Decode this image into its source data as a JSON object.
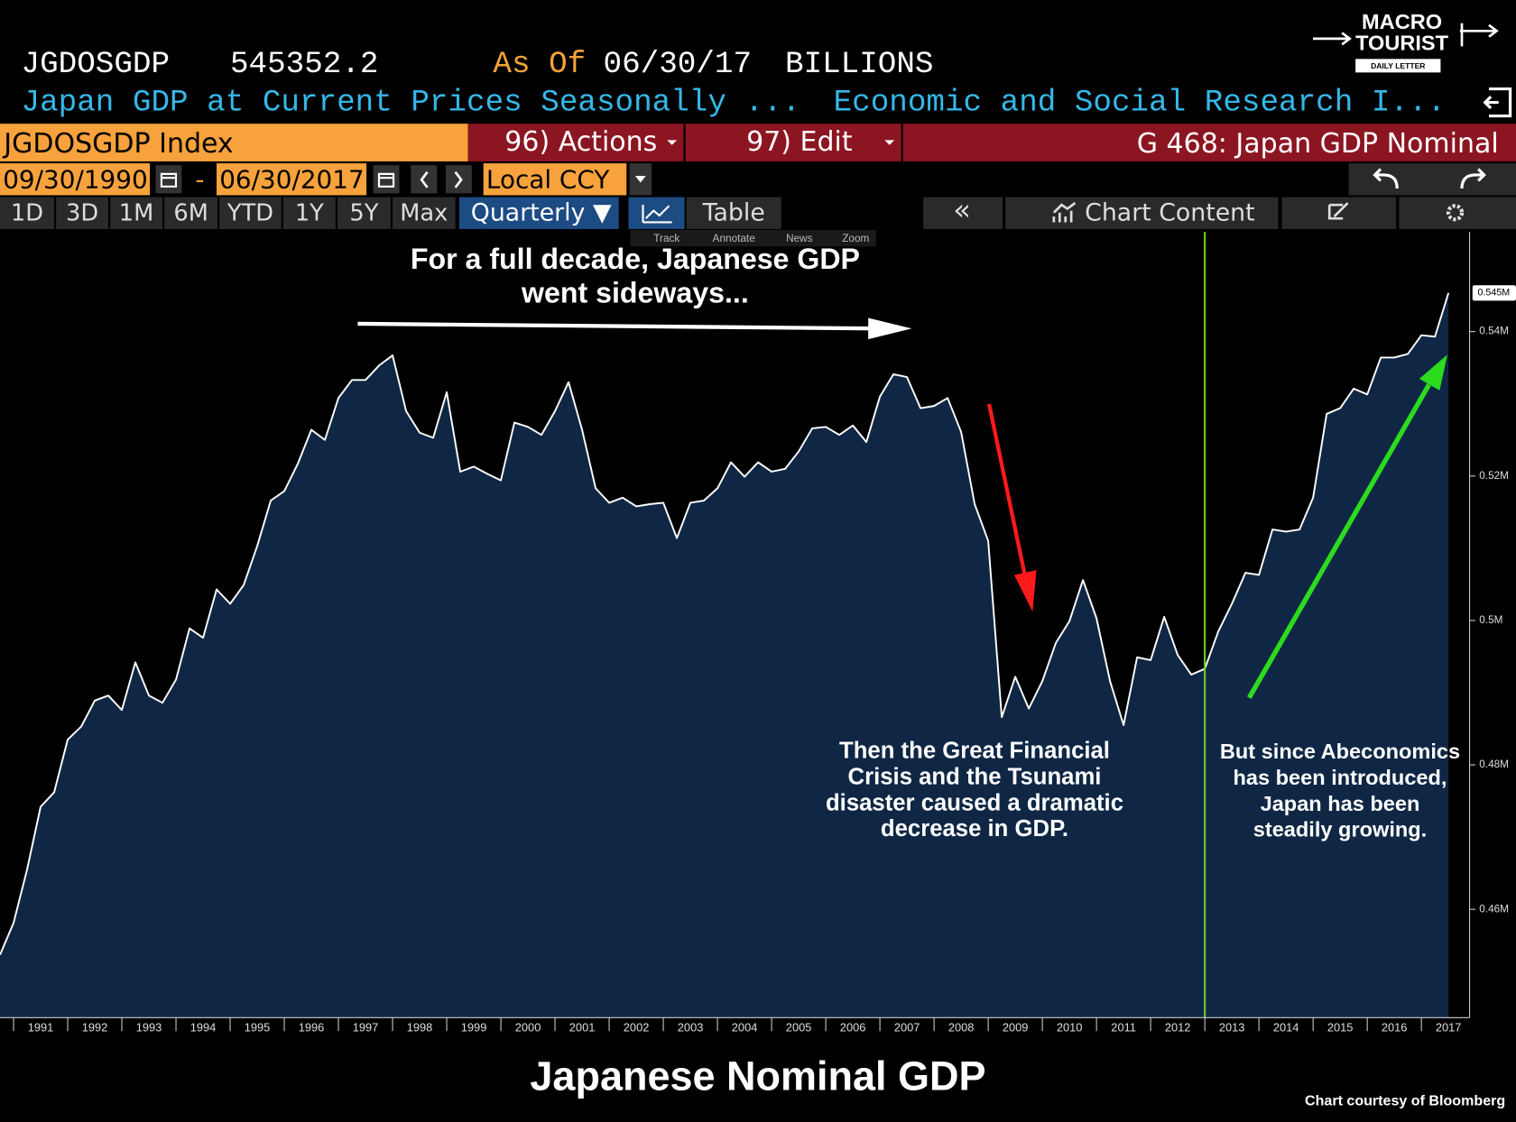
{
  "header": {
    "ticker": "JGDOSGDP",
    "last_price": "545352.2",
    "as_of_label": "As Of",
    "as_of_date": "06/30/17",
    "units": "BILLIONS",
    "description": "Japan GDP at Current Prices Seasonally ...",
    "source": "Economic and Social Research I..."
  },
  "logo": {
    "line1": "MACRO",
    "line2": "TOURIST",
    "line3": "DAILY LETTER"
  },
  "toolbar": {
    "security": "JGDOSGDP Index",
    "actions": "96) Actions",
    "edit": "97) Edit",
    "chart_name": "G 468: Japan GDP Nominal",
    "start_date": "09/30/1990",
    "date_separator": "-",
    "end_date": "06/30/2017",
    "currency": "Local CCY",
    "periods": [
      "1D",
      "3D",
      "1M",
      "6M",
      "YTD",
      "1Y",
      "5Y",
      "Max"
    ],
    "frequency": "Quarterly ▼",
    "table": "Table",
    "collapse": "«",
    "chart_content": "Chart Content",
    "tools": [
      "Track",
      "Annotate",
      "News",
      "Zoom"
    ]
  },
  "chart_data": {
    "type": "area",
    "title": "Japanese Nominal GDP",
    "source_note": "Chart courtesy of Bloomberg",
    "x": [
      1990.75,
      1991,
      1991.25,
      1991.5,
      1991.75,
      1992,
      1992.25,
      1992.5,
      1992.75,
      1993,
      1993.25,
      1993.5,
      1993.75,
      1994,
      1994.25,
      1994.5,
      1994.75,
      1995,
      1995.25,
      1995.5,
      1995.75,
      1996,
      1996.25,
      1996.5,
      1996.75,
      1997,
      1997.25,
      1997.5,
      1997.75,
      1998,
      1998.25,
      1998.5,
      1998.75,
      1999,
      1999.25,
      1999.5,
      1999.75,
      2000,
      2000.25,
      2000.5,
      2000.75,
      2001,
      2001.25,
      2001.5,
      2001.75,
      2002,
      2002.25,
      2002.5,
      2002.75,
      2003,
      2003.25,
      2003.5,
      2003.75,
      2004,
      2004.25,
      2004.5,
      2004.75,
      2005,
      2005.25,
      2005.5,
      2005.75,
      2006,
      2006.25,
      2006.5,
      2006.75,
      2007,
      2007.25,
      2007.5,
      2007.75,
      2008,
      2008.25,
      2008.5,
      2008.75,
      2009,
      2009.25,
      2009.5,
      2009.75,
      2010,
      2010.25,
      2010.5,
      2010.75,
      2011,
      2011.25,
      2011.5,
      2011.75,
      2012,
      2012.25,
      2012.5,
      2012.75,
      2013,
      2013.25,
      2013.5,
      2013.75,
      2014,
      2014.25,
      2014.5,
      2014.75,
      2015,
      2015.25,
      2015.5,
      2015.75,
      2016,
      2016.25,
      2016.5,
      2016.75,
      2017,
      2017.25,
      2017.5
    ],
    "values": [
      453700,
      458100,
      465500,
      474200,
      476200,
      483500,
      485300,
      488900,
      489600,
      487600,
      494200,
      489600,
      488600,
      491800,
      498900,
      497600,
      504300,
      502300,
      504900,
      510300,
      516600,
      517900,
      521700,
      526400,
      525000,
      530800,
      533300,
      533300,
      535300,
      536700,
      529000,
      526000,
      525300,
      531600,
      520600,
      521300,
      520300,
      519400,
      527400,
      526800,
      525700,
      529000,
      533000,
      526400,
      518300,
      516300,
      517000,
      515800,
      516100,
      516300,
      511400,
      516300,
      516600,
      518300,
      521900,
      519900,
      521900,
      520600,
      521000,
      523400,
      526600,
      526800,
      525700,
      527000,
      524700,
      531000,
      534100,
      533700,
      529400,
      529700,
      530800,
      526100,
      516100,
      511000,
      486600,
      492200,
      487800,
      491600,
      496900,
      499900,
      505600,
      500300,
      491600,
      485500,
      494900,
      494500,
      500500,
      495200,
      492500,
      493300,
      498500,
      502300,
      506600,
      506300,
      512600,
      512300,
      512600,
      517000,
      528600,
      529400,
      532100,
      531300,
      536400,
      536400,
      536900,
      539500,
      539300,
      545352.2
    ],
    "last_value_label": "0.545M",
    "line_color": "#ffffff",
    "fill_color": "#0f2744",
    "xlim": [
      1990.75,
      2017.89
    ],
    "xticks": [
      1991,
      1992,
      1993,
      1994,
      1995,
      1996,
      1997,
      1998,
      1999,
      2000,
      2001,
      2002,
      2003,
      2004,
      2005,
      2006,
      2007,
      2008,
      2009,
      2010,
      2011,
      2012,
      2013,
      2014,
      2015,
      2016,
      2017
    ],
    "ylim": [
      445000,
      553800
    ],
    "yticks": [
      {
        "value": 460000,
        "label": "0.46M"
      },
      {
        "value": 480000,
        "label": "0.48M"
      },
      {
        "value": 500000,
        "label": "0.5M"
      },
      {
        "value": 520000,
        "label": "0.52M"
      },
      {
        "value": 540000,
        "label": "0.54M"
      }
    ],
    "grid": false,
    "vertical_line": {
      "x": 2013,
      "color": "#6ccb2a"
    },
    "annotations": [
      {
        "lines": [
          "For a full decade, Japanese GDP",
          "went sideways..."
        ]
      },
      {
        "lines": [
          "Then the Great Financial",
          "Crisis and the Tsunami",
          "disaster caused a dramatic",
          "decrease in GDP."
        ]
      },
      {
        "lines": [
          "But since Abeconomics",
          "has been introduced,",
          "Japan has been",
          "steadily growing."
        ]
      }
    ]
  }
}
